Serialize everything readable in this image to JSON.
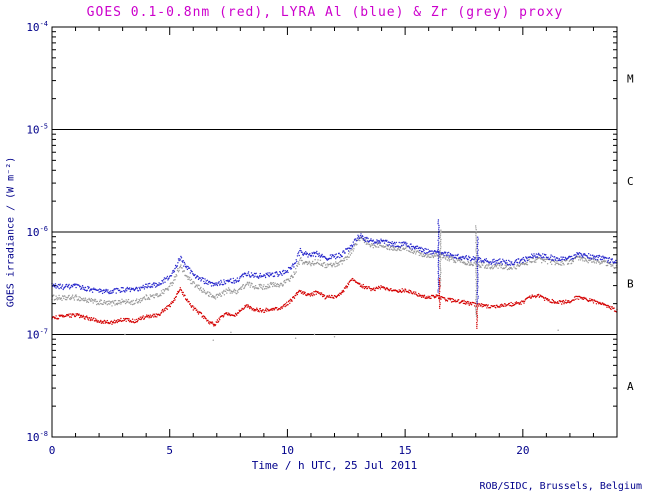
{
  "title": "GOES 0.1-0.8nm (red), LYRA Al (blue) & Zr (grey) proxy",
  "footer": "ROB/SIDC, Brussels, Belgium",
  "colors": {
    "title": "#cc00cc",
    "annotation": "#00008b",
    "frame": "#000000",
    "red": "#d40000",
    "blue": "#2626cc",
    "grey": "#999999"
  },
  "chart_data": {
    "type": "scatter",
    "title": "GOES 0.1-0.8nm (red), LYRA Al (blue) & Zr (grey) proxy",
    "xlabel": "Time / h UTC, 25 Jul 2011",
    "ylabel": "GOES irradiance / (W m⁻²)",
    "x_range": [
      0,
      24
    ],
    "x_major_ticks": [
      0,
      5,
      10,
      15,
      20
    ],
    "x_minor_step": 1,
    "y_scale": "log",
    "y_log_range_exponents": [
      -8,
      -4
    ],
    "y_major_tick_exponents": [
      -8,
      -7,
      -6,
      -5,
      -4
    ],
    "hlines": [
      1e-07,
      1e-06,
      1e-05
    ],
    "flare_classes": [
      {
        "label": "M",
        "y": 3.16e-05
      },
      {
        "label": "C",
        "y": 3.16e-06
      },
      {
        "label": "B",
        "y": 3.16e-07
      },
      {
        "label": "A",
        "y": 3.16e-08
      }
    ],
    "legend": [
      {
        "name": "GOES 0.1-0.8nm",
        "color_key": "red"
      },
      {
        "name": "LYRA Al proxy",
        "color_key": "blue"
      },
      {
        "name": "LYRA Zr proxy",
        "color_key": "grey"
      }
    ],
    "series": [
      {
        "name": "goes-0.1-0.8nm",
        "color_key": "red",
        "jitter": 0.035,
        "points": [
          [
            0,
            1.45e-07
          ],
          [
            0.5,
            1.5e-07
          ],
          [
            1,
            1.55e-07
          ],
          [
            1.5,
            1.45e-07
          ],
          [
            2,
            1.35e-07
          ],
          [
            2.5,
            1.3e-07
          ],
          [
            3,
            1.4e-07
          ],
          [
            3.5,
            1.35e-07
          ],
          [
            4,
            1.5e-07
          ],
          [
            4.5,
            1.55e-07
          ],
          [
            5,
            1.9e-07
          ],
          [
            5.2,
            2.2e-07
          ],
          [
            5.45,
            2.9e-07
          ],
          [
            5.6,
            2.4e-07
          ],
          [
            6,
            1.8e-07
          ],
          [
            6.3,
            1.6e-07
          ],
          [
            6.6,
            1.35e-07
          ],
          [
            6.9,
            1.25e-07
          ],
          [
            7.2,
            1.5e-07
          ],
          [
            7.5,
            1.6e-07
          ],
          [
            7.8,
            1.55e-07
          ],
          [
            8,
            1.7e-07
          ],
          [
            8.3,
            1.9e-07
          ],
          [
            8.6,
            1.75e-07
          ],
          [
            9,
            1.7e-07
          ],
          [
            9.3,
            1.8e-07
          ],
          [
            9.6,
            1.75e-07
          ],
          [
            10,
            2e-07
          ],
          [
            10.3,
            2.3e-07
          ],
          [
            10.5,
            2.7e-07
          ],
          [
            10.7,
            2.5e-07
          ],
          [
            11,
            2.45e-07
          ],
          [
            11.3,
            2.6e-07
          ],
          [
            11.6,
            2.3e-07
          ],
          [
            12,
            2.35e-07
          ],
          [
            12.3,
            2.5e-07
          ],
          [
            12.6,
            3.1e-07
          ],
          [
            12.8,
            3.5e-07
          ],
          [
            13,
            3.1e-07
          ],
          [
            13.3,
            2.9e-07
          ],
          [
            13.6,
            2.75e-07
          ],
          [
            14,
            2.9e-07
          ],
          [
            14.3,
            2.7e-07
          ],
          [
            14.6,
            2.65e-07
          ],
          [
            15,
            2.7e-07
          ],
          [
            15.3,
            2.6e-07
          ],
          [
            15.6,
            2.4e-07
          ],
          [
            16,
            2.3e-07
          ],
          [
            16.4,
            2.35e-07
          ],
          [
            16.7,
            2.2e-07
          ],
          [
            17,
            2.15e-07
          ],
          [
            17.4,
            2.1e-07
          ],
          [
            17.7,
            2e-07
          ],
          [
            18,
            1.95e-07
          ],
          [
            18.4,
            1.9e-07
          ],
          [
            18.7,
            1.85e-07
          ],
          [
            19,
            1.9e-07
          ],
          [
            19.4,
            1.95e-07
          ],
          [
            19.7,
            2e-07
          ],
          [
            20,
            2.05e-07
          ],
          [
            20.3,
            2.3e-07
          ],
          [
            20.6,
            2.4e-07
          ],
          [
            21,
            2.2e-07
          ],
          [
            21.3,
            2.1e-07
          ],
          [
            21.6,
            2.05e-07
          ],
          [
            22,
            2.1e-07
          ],
          [
            22.3,
            2.3e-07
          ],
          [
            22.6,
            2.25e-07
          ],
          [
            23,
            2.1e-07
          ],
          [
            23.4,
            2e-07
          ],
          [
            23.7,
            1.85e-07
          ],
          [
            24,
            1.7e-07
          ]
        ]
      },
      {
        "name": "lyra-al-proxy",
        "color_key": "blue",
        "jitter": 0.05,
        "points": [
          [
            0,
            3e-07
          ],
          [
            0.5,
            2.9e-07
          ],
          [
            1,
            2.95e-07
          ],
          [
            1.5,
            2.8e-07
          ],
          [
            2,
            2.65e-07
          ],
          [
            2.5,
            2.6e-07
          ],
          [
            3,
            2.75e-07
          ],
          [
            3.5,
            2.7e-07
          ],
          [
            4,
            2.95e-07
          ],
          [
            4.5,
            3.1e-07
          ],
          [
            5,
            3.6e-07
          ],
          [
            5.2,
            4.3e-07
          ],
          [
            5.45,
            5.6e-07
          ],
          [
            5.6,
            4.9e-07
          ],
          [
            6,
            3.9e-07
          ],
          [
            6.3,
            3.5e-07
          ],
          [
            6.6,
            3.2e-07
          ],
          [
            6.9,
            3e-07
          ],
          [
            7.2,
            3.2e-07
          ],
          [
            7.5,
            3.4e-07
          ],
          [
            7.8,
            3.3e-07
          ],
          [
            8,
            3.6e-07
          ],
          [
            8.3,
            3.9e-07
          ],
          [
            8.6,
            3.75e-07
          ],
          [
            9,
            3.7e-07
          ],
          [
            9.3,
            3.9e-07
          ],
          [
            9.6,
            3.85e-07
          ],
          [
            10,
            4.2e-07
          ],
          [
            10.3,
            4.8e-07
          ],
          [
            10.55,
            6.6e-07
          ],
          [
            10.7,
            6.1e-07
          ],
          [
            11,
            5.9e-07
          ],
          [
            11.3,
            6.2e-07
          ],
          [
            11.6,
            5.6e-07
          ],
          [
            12,
            5.7e-07
          ],
          [
            12.3,
            6e-07
          ],
          [
            12.6,
            6.8e-07
          ],
          [
            12.9,
            8.3e-07
          ],
          [
            13.1,
            9.3e-07
          ],
          [
            13.3,
            8.6e-07
          ],
          [
            13.6,
            8e-07
          ],
          [
            14,
            8.2e-07
          ],
          [
            14.3,
            7.7e-07
          ],
          [
            14.6,
            7.5e-07
          ],
          [
            15,
            7.6e-07
          ],
          [
            15.3,
            7.2e-07
          ],
          [
            15.6,
            6.8e-07
          ],
          [
            16,
            6.4e-07
          ],
          [
            16.4,
            6.5e-07
          ],
          [
            16.7,
            6.1e-07
          ],
          [
            17,
            5.9e-07
          ],
          [
            17.4,
            5.7e-07
          ],
          [
            17.7,
            5.5e-07
          ],
          [
            18,
            5.4e-07
          ],
          [
            18.4,
            5.2e-07
          ],
          [
            18.7,
            5.1e-07
          ],
          [
            19,
            5.2e-07
          ],
          [
            19.4,
            5e-07
          ],
          [
            19.7,
            5.1e-07
          ],
          [
            20,
            5.3e-07
          ],
          [
            20.3,
            5.7e-07
          ],
          [
            20.6,
            5.9e-07
          ],
          [
            21,
            5.7e-07
          ],
          [
            21.3,
            5.6e-07
          ],
          [
            21.6,
            5.5e-07
          ],
          [
            22,
            5.6e-07
          ],
          [
            22.3,
            6e-07
          ],
          [
            22.6,
            5.9e-07
          ],
          [
            23,
            5.7e-07
          ],
          [
            23.4,
            5.6e-07
          ],
          [
            23.7,
            5.3e-07
          ],
          [
            24,
            5.1e-07
          ]
        ]
      },
      {
        "name": "lyra-zr-proxy",
        "color_key": "grey",
        "jitter": 0.05,
        "points": [
          [
            0,
            2.3e-07
          ],
          [
            0.5,
            2.25e-07
          ],
          [
            1,
            2.3e-07
          ],
          [
            1.5,
            2.15e-07
          ],
          [
            2,
            2.05e-07
          ],
          [
            2.5,
            2e-07
          ],
          [
            3,
            2.1e-07
          ],
          [
            3.5,
            2.05e-07
          ],
          [
            4,
            2.3e-07
          ],
          [
            4.5,
            2.4e-07
          ],
          [
            5,
            2.9e-07
          ],
          [
            5.2,
            3.5e-07
          ],
          [
            5.45,
            4.7e-07
          ],
          [
            5.6,
            4e-07
          ],
          [
            6,
            3.1e-07
          ],
          [
            6.3,
            2.8e-07
          ],
          [
            6.6,
            2.5e-07
          ],
          [
            6.9,
            2.3e-07
          ],
          [
            7.2,
            2.5e-07
          ],
          [
            7.5,
            2.7e-07
          ],
          [
            7.8,
            2.6e-07
          ],
          [
            8,
            2.8e-07
          ],
          [
            8.3,
            3.1e-07
          ],
          [
            8.6,
            2.95e-07
          ],
          [
            9,
            2.9e-07
          ],
          [
            9.3,
            3.05e-07
          ],
          [
            9.6,
            3e-07
          ],
          [
            10,
            3.3e-07
          ],
          [
            10.3,
            3.9e-07
          ],
          [
            10.55,
            5.4e-07
          ],
          [
            10.7,
            5e-07
          ],
          [
            11,
            4.9e-07
          ],
          [
            11.3,
            5.2e-07
          ],
          [
            11.6,
            4.7e-07
          ],
          [
            12,
            4.8e-07
          ],
          [
            12.3,
            5.1e-07
          ],
          [
            12.6,
            5.9e-07
          ],
          [
            12.9,
            7.5e-07
          ],
          [
            13.1,
            8.8e-07
          ],
          [
            13.3,
            8e-07
          ],
          [
            13.6,
            7.4e-07
          ],
          [
            14,
            7.6e-07
          ],
          [
            14.3,
            7.1e-07
          ],
          [
            14.6,
            6.9e-07
          ],
          [
            15,
            7e-07
          ],
          [
            15.3,
            6.6e-07
          ],
          [
            15.6,
            6.2e-07
          ],
          [
            16,
            5.9e-07
          ],
          [
            16.4,
            6e-07
          ],
          [
            16.7,
            5.6e-07
          ],
          [
            17,
            5.4e-07
          ],
          [
            17.4,
            5.2e-07
          ],
          [
            17.7,
            5e-07
          ],
          [
            18,
            4.9e-07
          ],
          [
            18.4,
            4.7e-07
          ],
          [
            18.7,
            4.6e-07
          ],
          [
            19,
            4.7e-07
          ],
          [
            19.4,
            4.5e-07
          ],
          [
            19.7,
            4.6e-07
          ],
          [
            20,
            4.8e-07
          ],
          [
            20.3,
            5.2e-07
          ],
          [
            20.6,
            5.4e-07
          ],
          [
            21,
            5.2e-07
          ],
          [
            21.3,
            5.1e-07
          ],
          [
            21.6,
            5e-07
          ],
          [
            22,
            5.1e-07
          ],
          [
            22.3,
            5.5e-07
          ],
          [
            22.6,
            5.4e-07
          ],
          [
            23,
            5.2e-07
          ],
          [
            23.4,
            5.1e-07
          ],
          [
            23.7,
            4.8e-07
          ],
          [
            24,
            4.6e-07
          ]
        ]
      }
    ],
    "spikes": [
      {
        "x": 16.42,
        "top": 1.35e-06,
        "bottom": 2.6e-07,
        "color_key": "blue"
      },
      {
        "x": 16.5,
        "top": 1.05e-06,
        "bottom": 3e-07,
        "color_key": "grey"
      },
      {
        "x": 16.46,
        "top": 3.5e-07,
        "bottom": 1.8e-07,
        "color_key": "red"
      },
      {
        "x": 18.02,
        "top": 1.15e-06,
        "bottom": 1.5e-07,
        "color_key": "grey"
      },
      {
        "x": 18.08,
        "top": 9e-07,
        "bottom": 2e-07,
        "color_key": "blue"
      },
      {
        "x": 18.05,
        "top": 2e-07,
        "bottom": 1.15e-07,
        "color_key": "red"
      }
    ],
    "stray_dots": [
      {
        "x": 3.1,
        "y": 1e-07,
        "color_key": "grey"
      },
      {
        "x": 6.85,
        "y": 8.8e-08,
        "color_key": "grey"
      },
      {
        "x": 7.6,
        "y": 1.05e-07,
        "color_key": "grey"
      },
      {
        "x": 10.35,
        "y": 9.2e-08,
        "color_key": "grey"
      },
      {
        "x": 11.15,
        "y": 1e-07,
        "color_key": "grey"
      },
      {
        "x": 12.0,
        "y": 9.5e-08,
        "color_key": "grey"
      },
      {
        "x": 21.5,
        "y": 1.1e-07,
        "color_key": "grey"
      }
    ]
  }
}
